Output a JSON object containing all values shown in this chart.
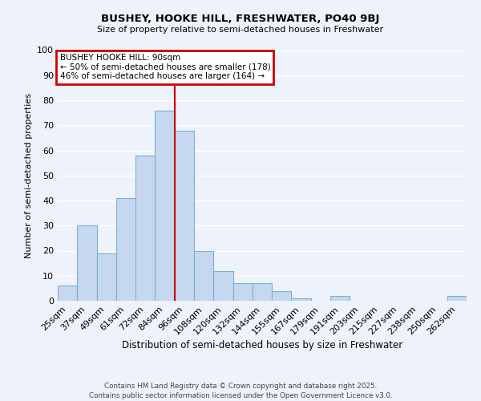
{
  "title": "BUSHEY, HOOKE HILL, FRESHWATER, PO40 9BJ",
  "subtitle": "Size of property relative to semi-detached houses in Freshwater",
  "xlabel": "Distribution of semi-detached houses by size in Freshwater",
  "ylabel": "Number of semi-detached properties",
  "bar_color": "#c5d8f0",
  "bar_edge_color": "#7bafd4",
  "background_color": "#eef2fb",
  "grid_color": "#ffffff",
  "categories": [
    "25sqm",
    "37sqm",
    "49sqm",
    "61sqm",
    "72sqm",
    "84sqm",
    "96sqm",
    "108sqm",
    "120sqm",
    "132sqm",
    "144sqm",
    "155sqm",
    "167sqm",
    "179sqm",
    "191sqm",
    "203sqm",
    "215sqm",
    "227sqm",
    "238sqm",
    "250sqm",
    "262sqm"
  ],
  "values": [
    6,
    30,
    19,
    41,
    58,
    76,
    68,
    20,
    12,
    7,
    7,
    4,
    1,
    0,
    2,
    0,
    0,
    0,
    0,
    0,
    2
  ],
  "ylim": [
    0,
    100
  ],
  "yticks": [
    0,
    10,
    20,
    30,
    40,
    50,
    60,
    70,
    80,
    90,
    100
  ],
  "annotation_title": "BUSHEY HOOKE HILL: 90sqm",
  "annotation_line1": "← 50% of semi-detached houses are smaller (178)",
  "annotation_line2": "46% of semi-detached houses are larger (164) →",
  "footer_line1": "Contains HM Land Registry data © Crown copyright and database right 2025.",
  "footer_line2": "Contains public sector information licensed under the Open Government Licence v3.0.",
  "annotation_box_color": "#cc0000",
  "property_line_color": "#cc0000"
}
